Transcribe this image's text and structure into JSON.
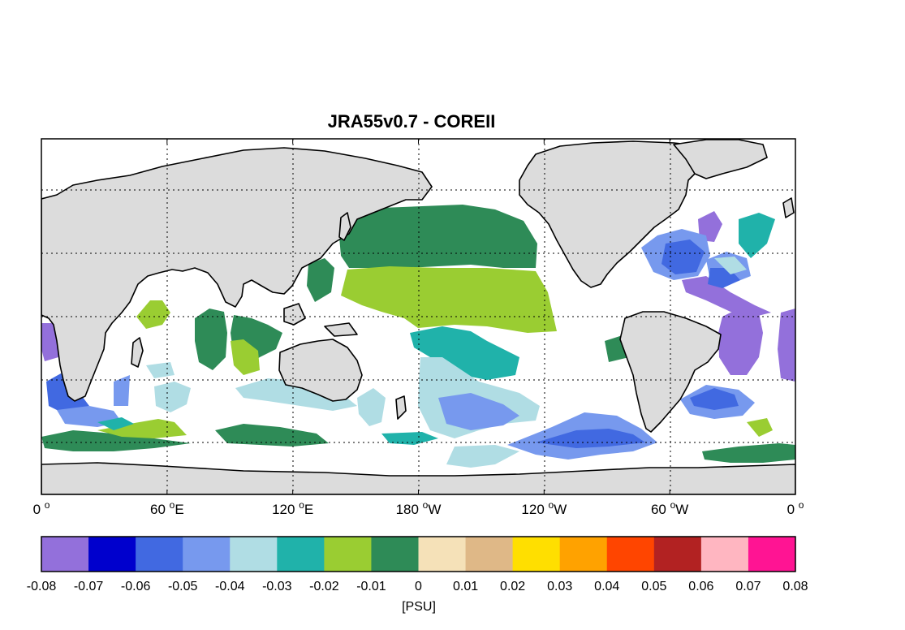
{
  "figure": {
    "title": "JRA55v0.7 - COREII",
    "units_label": "[PSU]"
  },
  "map": {
    "projection": "cylindrical equidistant",
    "gridlines": "dotted",
    "land_color": "#dcdcdc",
    "coast_color": "#000000",
    "x_ticks": [
      {
        "value": "0",
        "dir": ""
      },
      {
        "value": "60",
        "dir": "E"
      },
      {
        "value": "120",
        "dir": "E"
      },
      {
        "value": "180",
        "dir": "W"
      },
      {
        "value": "120",
        "dir": "W"
      },
      {
        "value": "60",
        "dir": "W"
      },
      {
        "value": "0",
        "dir": ""
      }
    ]
  },
  "colorbar": {
    "colors": [
      "#9370db",
      "#0000cd",
      "#4169e1",
      "#7799ee",
      "#b0dde4",
      "#20b2aa",
      "#9acd32",
      "#2e8b57",
      "#f5e1b8",
      "#dfb887",
      "#ffdf00",
      "#ffa200",
      "#ff4500",
      "#b22222",
      "#ffb6c1",
      "#ff1493"
    ],
    "tick_labels": [
      "-0.08",
      "-0.07",
      "-0.06",
      "-0.05",
      "-0.04",
      "-0.03",
      "-0.02",
      "-0.01",
      "0",
      "0.01",
      "0.02",
      "0.03",
      "0.04",
      "0.05",
      "0.06",
      "0.07",
      "0.08"
    ]
  }
}
